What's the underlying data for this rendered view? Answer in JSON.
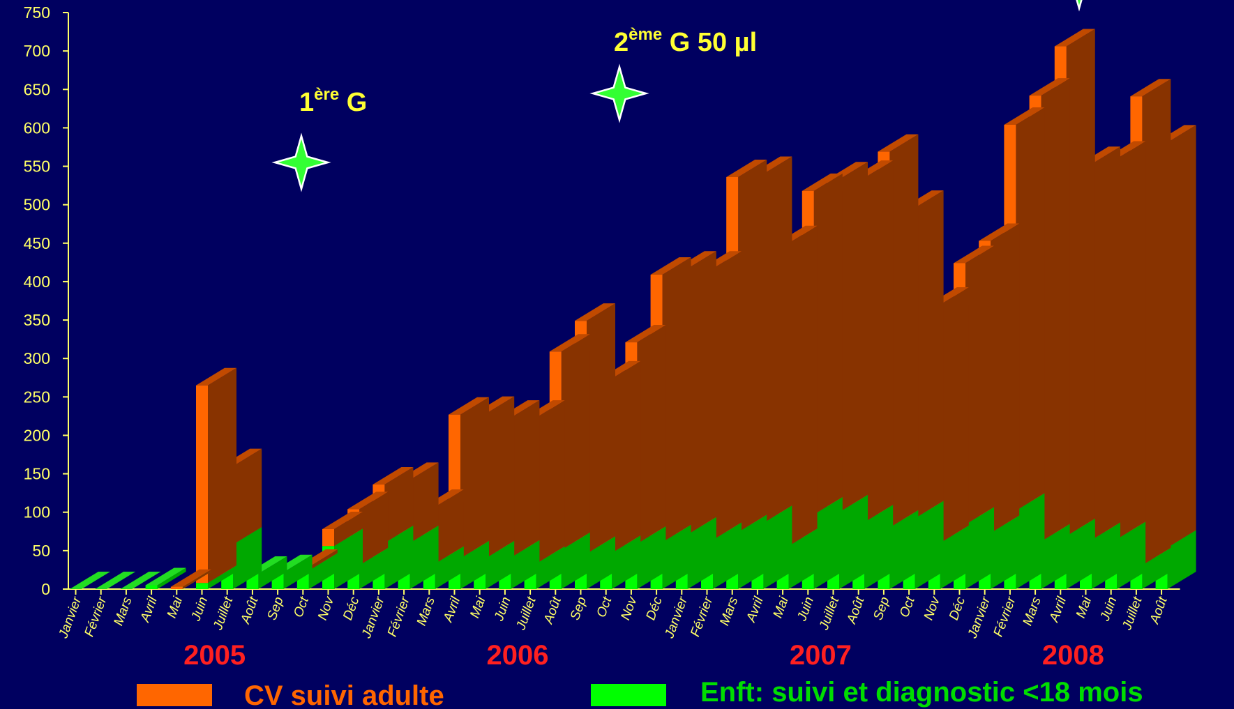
{
  "chart_data": {
    "type": "bar",
    "stacked": true,
    "style": "3d",
    "ylim": [
      0,
      750
    ],
    "yticks": [
      0,
      50,
      100,
      150,
      200,
      250,
      300,
      350,
      400,
      450,
      500,
      550,
      600,
      650,
      700,
      750
    ],
    "categories": [
      "Janvier",
      "Février",
      "Mars",
      "Avril",
      "Mai",
      "Juin",
      "Juillet",
      "Août",
      "Sep",
      "Oct",
      "Nov",
      "Déc",
      "Janvier",
      "Février",
      "Mars",
      "Avril",
      "Mai",
      "Juin",
      "Juillet",
      "Août",
      "Sep",
      "Oct",
      "Nov",
      "Déc",
      "Janvier",
      "Février",
      "Mars",
      "Avril",
      "Mai",
      "Juin",
      "Juillet",
      "Août",
      "Sep",
      "Oct",
      "Nov",
      "Déc",
      "Janvier",
      "Février",
      "Mars",
      "Avril",
      "Mai",
      "Juin",
      "Juillet",
      "Août"
    ],
    "years": [
      {
        "label": "2005",
        "start": 0,
        "end": 11
      },
      {
        "label": "2006",
        "start": 12,
        "end": 23
      },
      {
        "label": "2007",
        "start": 24,
        "end": 35
      },
      {
        "label": "2008",
        "start": 36,
        "end": 43
      }
    ],
    "series": [
      {
        "name": "Enft: suivi et diagnostic <18 mois",
        "color": "#00ff00",
        "values": [
          0,
          0,
          0,
          5,
          0,
          8,
          58,
          20,
          22,
          24,
          56,
          31,
          60,
          60,
          33,
          40,
          40,
          41,
          33,
          51,
          46,
          47,
          59,
          61,
          71,
          64,
          74,
          86,
          56,
          97,
          100,
          87,
          80,
          92,
          60,
          84,
          73,
          102,
          62,
          69,
          64,
          65,
          31,
          54
        ]
      },
      {
        "name": "CV  suivi adulte",
        "color": "#ff6600",
        "values": [
          0,
          0,
          0,
          0,
          3,
          257,
          102,
          0,
          0,
          5,
          22,
          73,
          76,
          82,
          74,
          187,
          188,
          182,
          190,
          258,
          303,
          227,
          262,
          348,
          346,
          353,
          462,
          454,
          394,
          421,
          433,
          448,
          489,
          404,
          310,
          340,
          380,
          502,
          580,
          637,
          489,
          495,
          610,
          527
        ]
      }
    ],
    "annotations": [
      {
        "text": "1",
        "sup": "ère",
        "rest": " G"
      },
      {
        "text": "2",
        "sup": "ème",
        "rest": " G 50 µl"
      }
    ]
  }
}
